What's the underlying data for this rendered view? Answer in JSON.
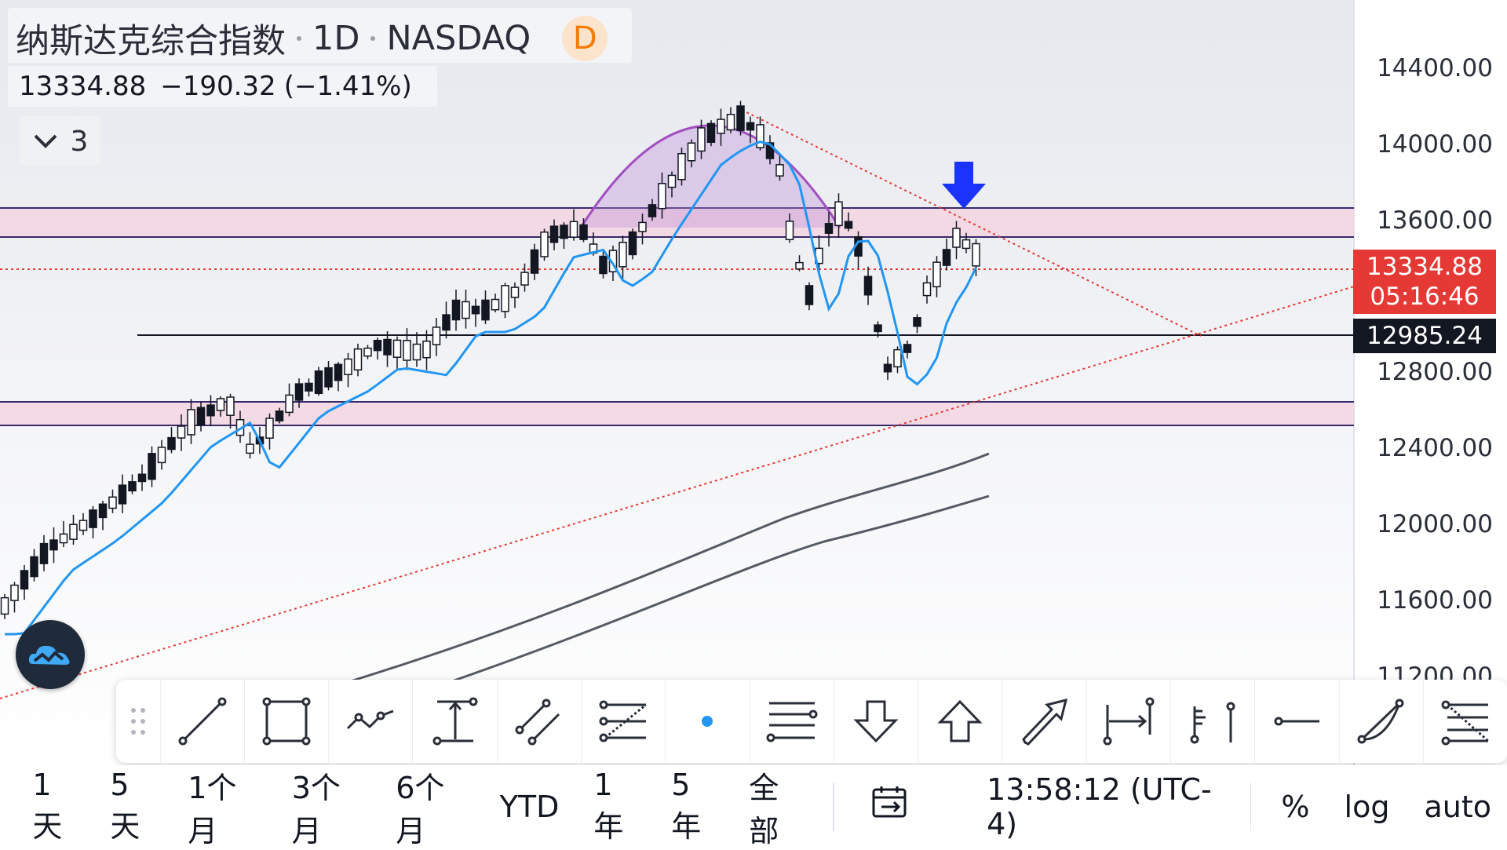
{
  "header": {
    "symbol_name": "纳斯达克综合指数",
    "interval": "1D",
    "exchange": "NASDAQ",
    "badge": "D",
    "last": "13334.88",
    "change": "−190.32",
    "change_pct": "(−1.41%)",
    "indicators_count": "3"
  },
  "price_axis": {
    "labels": [
      "14400.00",
      "14000.00",
      "13600.00",
      "12800.00",
      "12400.00",
      "12000.00",
      "11600.00",
      "11200.00"
    ],
    "current_price": "13334.88",
    "countdown": "05:16:46",
    "level_price": "12985.24"
  },
  "chart_data": {
    "type": "candlestick",
    "ylim": [
      11200,
      14400
    ],
    "price_levels": [
      13600,
      13450,
      12985.24,
      12630,
      12510
    ],
    "current_price": 13334.88,
    "axis_labels": [
      14400,
      14000,
      13600,
      12800,
      12400,
      12000,
      11600,
      11200
    ]
  },
  "colors": {
    "accent_red": "#e53935",
    "zone_fill": "#f3d3df",
    "ma_blue": "#2196f3",
    "arrow_blue": "#1a33ff",
    "arc_purple": "#a24fc0"
  },
  "toolbar": {
    "icons": [
      "grip-icon",
      "trend-line-icon",
      "rectangle-icon",
      "path-icon",
      "price-range-icon",
      "parallel-channel-icon",
      "fib-retracement-icon",
      "dot-icon",
      "horizontal-lines-icon",
      "arrow-down-icon",
      "arrow-up-icon",
      "arrow-icon",
      "date-range-icon",
      "bars-pattern-icon",
      "horizontal-ray-icon",
      "arc-icon",
      "fib-fan-icon"
    ]
  },
  "bottom_bar": {
    "ranges": [
      "1天",
      "5天",
      "1个月",
      "3个月",
      "6个月",
      "YTD",
      "1年",
      "5年",
      "全部"
    ],
    "time": "13:58:12 (UTC-4)",
    "percent": "%",
    "log": "log",
    "auto": "auto"
  }
}
